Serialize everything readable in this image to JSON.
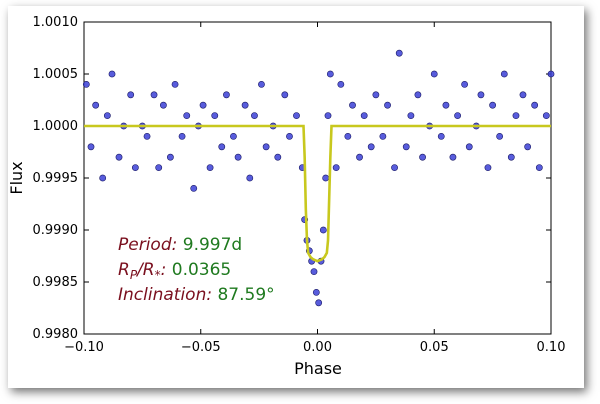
{
  "chart_data": {
    "type": "scatter",
    "title": "",
    "xlabel": "Phase",
    "ylabel": "Flux",
    "xlim": [
      -0.1,
      0.1
    ],
    "ylim": [
      0.998,
      1.001
    ],
    "grid": false,
    "x_ticks": [
      -0.1,
      -0.05,
      0.0,
      0.05,
      0.1
    ],
    "x_tick_labels": [
      "−0.10",
      "−0.05",
      "0.00",
      "0.05",
      "0.10"
    ],
    "y_ticks": [
      0.998,
      0.9985,
      0.999,
      0.9995,
      1.0,
      1.0005,
      1.001
    ],
    "y_tick_labels": [
      "0.9980",
      "0.9985",
      "0.9990",
      "0.9995",
      "1.0000",
      "1.0005",
      "1.0010"
    ],
    "colors": {
      "points": "#3b3fd6",
      "point_edge": "#1a1a66",
      "model": "#c8c81e"
    },
    "points_x": [
      -0.099,
      -0.097,
      -0.095,
      -0.092,
      -0.09,
      -0.088,
      -0.085,
      -0.083,
      -0.08,
      -0.078,
      -0.075,
      -0.073,
      -0.07,
      -0.068,
      -0.066,
      -0.063,
      -0.061,
      -0.058,
      -0.056,
      -0.053,
      -0.051,
      -0.049,
      -0.046,
      -0.044,
      -0.041,
      -0.039,
      -0.036,
      -0.034,
      -0.031,
      -0.029,
      -0.027,
      -0.024,
      -0.022,
      -0.019,
      -0.017,
      -0.014,
      -0.012,
      -0.009,
      -0.0065,
      -0.0055,
      -0.0045,
      -0.0035,
      -0.0025,
      -0.0015,
      -0.0005,
      0.0005,
      0.0015,
      0.0025,
      0.0035,
      0.0045,
      0.0055,
      0.008,
      0.01,
      0.013,
      0.015,
      0.018,
      0.02,
      0.023,
      0.025,
      0.028,
      0.03,
      0.033,
      0.035,
      0.038,
      0.04,
      0.043,
      0.045,
      0.048,
      0.05,
      0.053,
      0.055,
      0.058,
      0.06,
      0.063,
      0.065,
      0.068,
      0.07,
      0.073,
      0.075,
      0.078,
      0.08,
      0.083,
      0.085,
      0.088,
      0.09,
      0.093,
      0.095,
      0.098,
      0.1
    ],
    "points_y": [
      1.0004,
      0.9998,
      1.0002,
      0.9995,
      1.0001,
      1.0005,
      0.9997,
      1.0,
      1.0003,
      0.9996,
      1.0,
      0.9999,
      1.0003,
      0.9996,
      1.0002,
      0.9997,
      1.0004,
      0.9999,
      1.0001,
      0.9994,
      1.0,
      1.0002,
      0.9996,
      1.0001,
      0.9998,
      1.0003,
      0.9999,
      0.9997,
      1.0002,
      0.9995,
      1.0001,
      1.0004,
      0.9998,
      1.0,
      0.9997,
      1.0003,
      0.9999,
      1.0001,
      0.9996,
      0.9991,
      0.9989,
      0.9988,
      0.9987,
      0.9986,
      0.9984,
      0.9983,
      0.9987,
      0.999,
      0.9995,
      1.0001,
      1.0005,
      0.9996,
      1.0004,
      0.9999,
      1.0002,
      0.9997,
      1.0001,
      0.9998,
      1.0003,
      0.9999,
      1.0002,
      0.9996,
      1.0007,
      0.9998,
      1.0001,
      1.0003,
      0.9997,
      1.0,
      1.0005,
      0.9999,
      1.0002,
      0.9997,
      1.0001,
      1.0004,
      0.9998,
      1.0,
      1.0003,
      0.9996,
      1.0002,
      0.9999,
      1.0005,
      0.9997,
      1.0001,
      1.0003,
      0.9998,
      1.0002,
      0.9996,
      1.0001,
      1.0005
    ],
    "model_x": [
      -0.1,
      -0.006,
      -0.0055,
      -0.005,
      -0.0045,
      -0.004,
      -0.003,
      -0.002,
      -0.001,
      0.0,
      0.001,
      0.002,
      0.003,
      0.004,
      0.0045,
      0.005,
      0.0055,
      0.006,
      0.1
    ],
    "model_y": [
      1.0,
      1.0,
      0.9997,
      0.9992,
      0.9989,
      0.99878,
      0.99874,
      0.99872,
      0.99871,
      0.9987,
      0.99871,
      0.99872,
      0.99874,
      0.99878,
      0.9989,
      0.9993,
      0.9997,
      1.0,
      1.0
    ],
    "annotations": [
      {
        "key": "Period:",
        "value": "9.997d"
      },
      {
        "key": "R",
        "key_sub": "P",
        "key_mid": "/R",
        "key_sub2": "*",
        "key_end": ":",
        "value": "0.0365"
      },
      {
        "key": "Inclination:",
        "value": "87.59°"
      }
    ]
  }
}
